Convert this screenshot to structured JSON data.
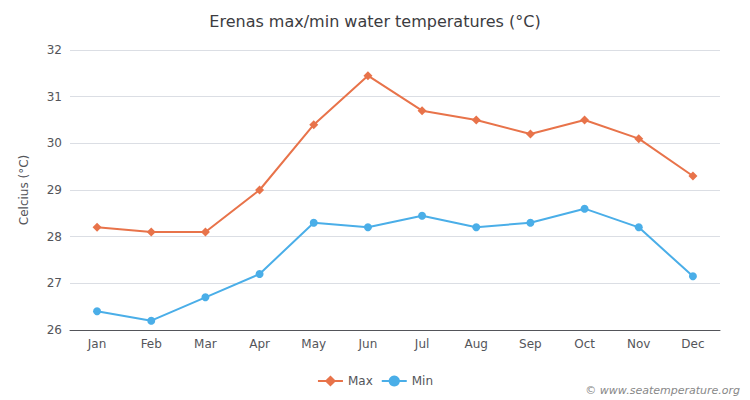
{
  "chart_data": {
    "type": "line",
    "title": "Erenas max/min water temperatures (°C)",
    "ylabel": "Celcius (°C)",
    "annotations": [
      "© www.seatemperature.org"
    ],
    "categories": [
      "Jan",
      "Feb",
      "Mar",
      "Apr",
      "May",
      "Jun",
      "Jul",
      "Aug",
      "Sep",
      "Oct",
      "Nov",
      "Dec"
    ],
    "series": [
      {
        "name": "Max",
        "color": "#e8734a",
        "marker": "diamond",
        "values": [
          28.2,
          28.1,
          28.1,
          29.0,
          30.4,
          31.45,
          30.7,
          30.5,
          30.2,
          30.5,
          30.1,
          29.3
        ]
      },
      {
        "name": "Min",
        "color": "#4aaee8",
        "marker": "circle",
        "values": [
          26.4,
          26.2,
          26.7,
          27.2,
          28.3,
          28.2,
          28.45,
          28.2,
          28.3,
          28.6,
          28.2,
          27.15
        ]
      }
    ],
    "ylim": [
      26,
      32
    ],
    "yticks": [
      26,
      27,
      28,
      29,
      30,
      31,
      32
    ],
    "grid": true,
    "legend": "bottom"
  }
}
